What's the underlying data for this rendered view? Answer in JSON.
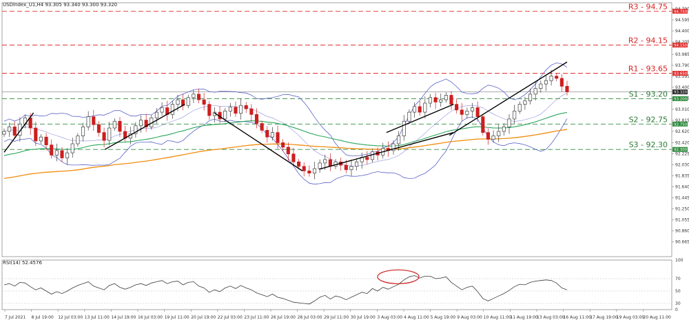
{
  "header": {
    "symbol_info": "USDIndex_U1,H4  93.305 93.340 93.300 93.320",
    "rsi_info": "RSI(14) 52.4576"
  },
  "colors": {
    "bull": "#3a3a3a",
    "bear": "#cc1f1f",
    "bollinger": "#5a63c9",
    "ma_fast": "#2aa65a",
    "ma_slow": "#f08c0c",
    "resistance": "#e03030",
    "support": "#2d8a3e",
    "trendline": "#000000",
    "rsi": "#3a3a3a",
    "rsi_highlight": "#cc1f1f"
  },
  "chart_data": [
    {
      "type": "candlestick",
      "ylim": [
        90.4,
        94.9
      ],
      "y_ticks": [
        "94.790",
        "94.595",
        "94.400",
        "94.205",
        "93.985",
        "93.790",
        "93.595",
        "93.400",
        "93.205",
        "93.010",
        "92.815",
        "92.620",
        "92.420",
        "92.225",
        "92.030",
        "91.835",
        "91.640",
        "91.445",
        "91.250",
        "91.055",
        "90.860",
        "90.665"
      ],
      "x_labels": [
        "7 Jul 2021",
        "8 Jul 19:00",
        "12 Jul 03:00",
        "13 Jul 11:00",
        "14 Jul 19:00",
        "16 Jul 03:00",
        "19 Jul 11:00",
        "20 Jul 19:00",
        "22 Jul 03:00",
        "23 Jul 11:00",
        "26 Jul 19:00",
        "28 Jul 03:00",
        "29 Jul 11:00",
        "30 Jul 19:00",
        "3 Aug 03:00",
        "4 Aug 11:00",
        "5 Aug 19:00",
        "9 Aug 03:00",
        "10 Aug 11:00",
        "11 Aug 19:00",
        "13 Aug 03:00",
        "16 Aug 11:00",
        "17 Aug 19:00",
        "19 Aug 03:00",
        "20 Aug 11:00"
      ],
      "levels": [
        {
          "name": "R3",
          "value": 94.75,
          "label": "R3 - 94.75",
          "tag": "94.750",
          "kind": "resistance"
        },
        {
          "name": "R2",
          "value": 94.15,
          "label": "R2 - 94.15",
          "tag": "94.150",
          "kind": "resistance"
        },
        {
          "name": "R1",
          "value": 93.65,
          "label": "R1 - 93.65",
          "tag": "93.650",
          "kind": "resistance"
        },
        {
          "name": "S1",
          "value": 93.2,
          "label": "S1 - 93.20",
          "tag": "93.200",
          "kind": "support"
        },
        {
          "name": "S2",
          "value": 92.75,
          "label": "S2 - 92.75",
          "tag": "92.750",
          "kind": "support"
        },
        {
          "name": "S3",
          "value": 92.3,
          "label": "S3 - 92.30",
          "tag": "92.300",
          "kind": "support"
        }
      ],
      "last_price": 93.32,
      "last_price_tag": "93.320",
      "close_series": [
        92.62,
        92.7,
        92.55,
        92.75,
        92.86,
        92.68,
        92.45,
        92.52,
        92.38,
        92.2,
        92.28,
        92.15,
        92.24,
        92.4,
        92.54,
        92.7,
        92.88,
        92.74,
        92.6,
        92.46,
        92.68,
        92.8,
        92.62,
        92.5,
        92.58,
        92.72,
        92.82,
        92.7,
        92.86,
        92.96,
        93.04,
        92.92,
        93.1,
        93.18,
        93.08,
        93.22,
        93.28,
        93.18,
        93.1,
        92.9,
        92.96,
        92.84,
        92.98,
        93.05,
        92.94,
        93.08,
        93.02,
        92.92,
        92.76,
        92.64,
        92.52,
        92.6,
        92.42,
        92.34,
        92.22,
        92.08,
        92.0,
        91.92,
        91.88,
        91.96,
        92.06,
        92.12,
        92.0,
        92.08,
        92.02,
        91.94,
        92.0,
        92.08,
        92.16,
        92.12,
        92.26,
        92.2,
        92.32,
        92.28,
        92.4,
        92.54,
        92.8,
        92.96,
        93.06,
        92.96,
        93.12,
        93.22,
        93.14,
        93.18,
        93.26,
        93.1,
        93.0,
        92.92,
        92.98,
        93.04,
        92.88,
        92.6,
        92.48,
        92.54,
        92.62,
        92.7,
        92.84,
        92.98,
        93.1,
        93.16,
        93.28,
        93.38,
        93.46,
        93.52,
        93.6,
        93.56,
        93.42,
        93.32
      ],
      "rsi": {
        "ylim": [
          20,
          100
        ],
        "ticks": [
          "100",
          "70",
          "50",
          "30",
          "0"
        ],
        "values": [
          60,
          62,
          58,
          64,
          63,
          57,
          52,
          55,
          50,
          45,
          49,
          46,
          50,
          55,
          59,
          62,
          65,
          58,
          55,
          52,
          59,
          62,
          56,
          53,
          56,
          60,
          62,
          59,
          63,
          65,
          67,
          62,
          65,
          66,
          60,
          64,
          65,
          58,
          55,
          48,
          52,
          49,
          55,
          58,
          54,
          59,
          55,
          52,
          47,
          44,
          41,
          45,
          40,
          38,
          35,
          32,
          31,
          30,
          29,
          34,
          40,
          43,
          37,
          42,
          40,
          36,
          40,
          44,
          48,
          46,
          54,
          50,
          56,
          53,
          57,
          61,
          68,
          73,
          75,
          71,
          74,
          74,
          70,
          71,
          73,
          64,
          58,
          52,
          56,
          58,
          49,
          38,
          34,
          38,
          42,
          46,
          51,
          57,
          61,
          60,
          64,
          66,
          67,
          68,
          67,
          63,
          55,
          52
        ]
      }
    }
  ]
}
